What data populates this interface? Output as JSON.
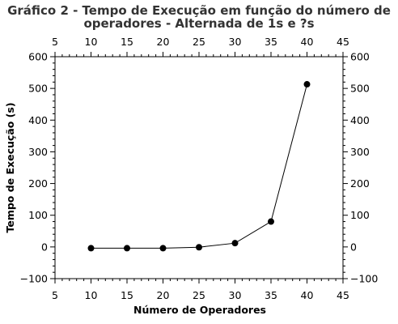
{
  "chart_data": {
    "type": "line",
    "title_lines": [
      "Gráfico 2 - Tempo de Execução em função do número de",
      "operadores - Alternada de 1s e ?s"
    ],
    "xlabel": "Número de Operadores",
    "ylabel": "Tempo de Execução (s)",
    "xlim": [
      5,
      45
    ],
    "ylim": [
      -100,
      600
    ],
    "xticks": [
      5,
      10,
      15,
      20,
      25,
      30,
      35,
      40,
      45
    ],
    "yticks": [
      -100,
      0,
      100,
      200,
      300,
      400,
      500,
      600
    ],
    "x_minor_step": 1,
    "y_minor_step": 20,
    "mirror_axes": true,
    "grid": false,
    "legend": "none",
    "series": [
      {
        "color": "#000000",
        "marker": "circle",
        "x": [
          10,
          15,
          20,
          25,
          30,
          35,
          40
        ],
        "y": [
          -4,
          -4,
          -4,
          -1,
          12,
          80,
          513
        ]
      }
    ]
  }
}
